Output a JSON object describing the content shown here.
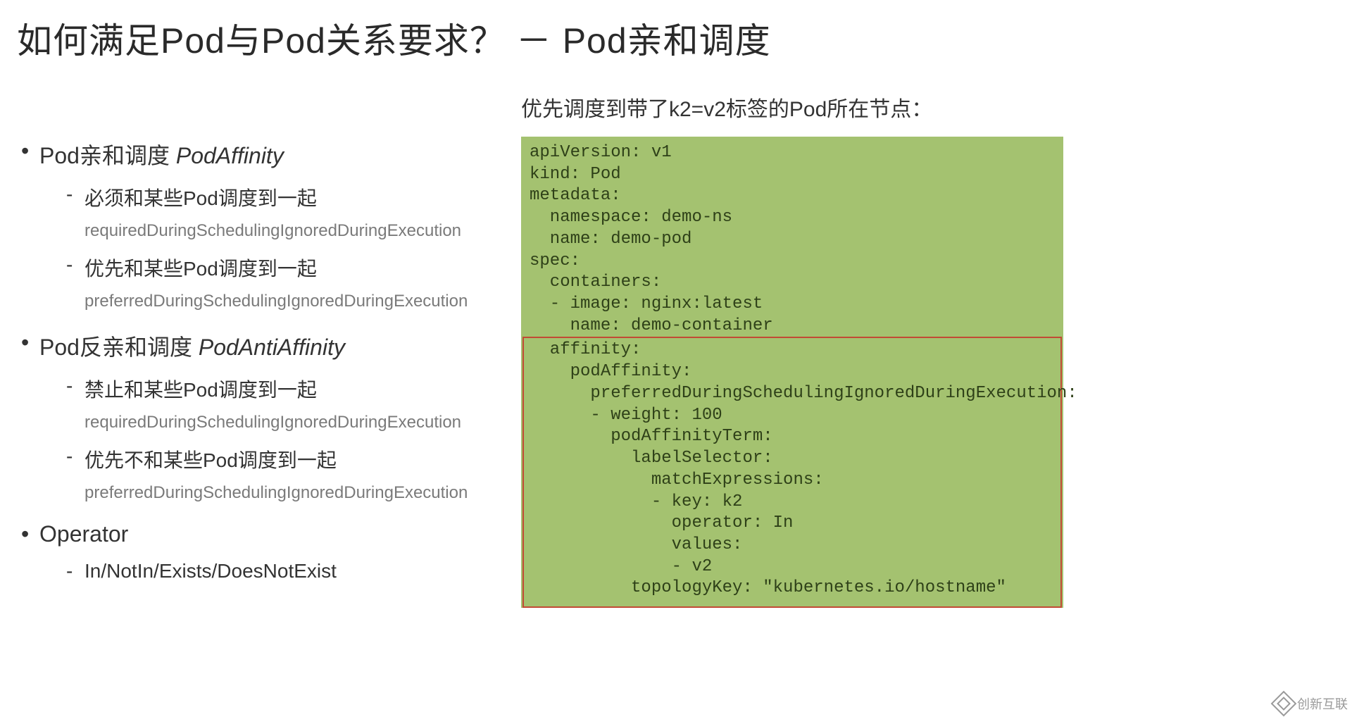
{
  "title": "如何满足Pod与Pod关系要求？ － Pod亲和调度",
  "left": {
    "s1_head": "Pod亲和调度 ",
    "s1_em": "PodAffinity",
    "s1_a": "必须和某些Pod调度到一起",
    "s1_a_sub": "requiredDuringSchedulingIgnoredDuringExecution",
    "s1_b": "优先和某些Pod调度到一起",
    "s1_b_sub": "preferredDuringSchedulingIgnoredDuringExecution",
    "s2_head": "Pod反亲和调度 ",
    "s2_em": "PodAntiAffinity",
    "s2_a": "禁止和某些Pod调度到一起",
    "s2_a_sub": "requiredDuringSchedulingIgnoredDuringExecution",
    "s2_b": "优先不和某些Pod调度到一起",
    "s2_b_sub": "preferredDuringSchedulingIgnoredDuringExecution",
    "s3_head": "Operator",
    "s3_a": "In/NotIn/Exists/DoesNotExist"
  },
  "right": {
    "subhead": "优先调度到带了k2=v2标签的Pod所在节点：",
    "code_top": "apiVersion: v1\nkind: Pod\nmetadata:\n  namespace: demo-ns\n  name: demo-pod\nspec:\n  containers:\n  - image: nginx:latest\n    name: demo-container",
    "code_hl": "  affinity:\n    podAffinity:\n      preferredDuringSchedulingIgnoredDuringExecution:\n      - weight: 100\n        podAffinityTerm:\n          labelSelector:\n            matchExpressions:\n            - key: k2\n              operator: In\n              values:\n              - v2\n          topologyKey: \"kubernetes.io/hostname\""
  },
  "watermark": "创新互联",
  "style": {
    "code_bg": "#a4c270",
    "code_fg": "#2e4018",
    "highlight_border": "#c24a35",
    "title_fontsize": 50,
    "l1_fontsize": 32,
    "l2_fontsize": 28,
    "l3_fontsize": 24,
    "l3_color": "#7a7a7a",
    "code_fontsize": 24,
    "code_fontfamily": "Courier New"
  }
}
